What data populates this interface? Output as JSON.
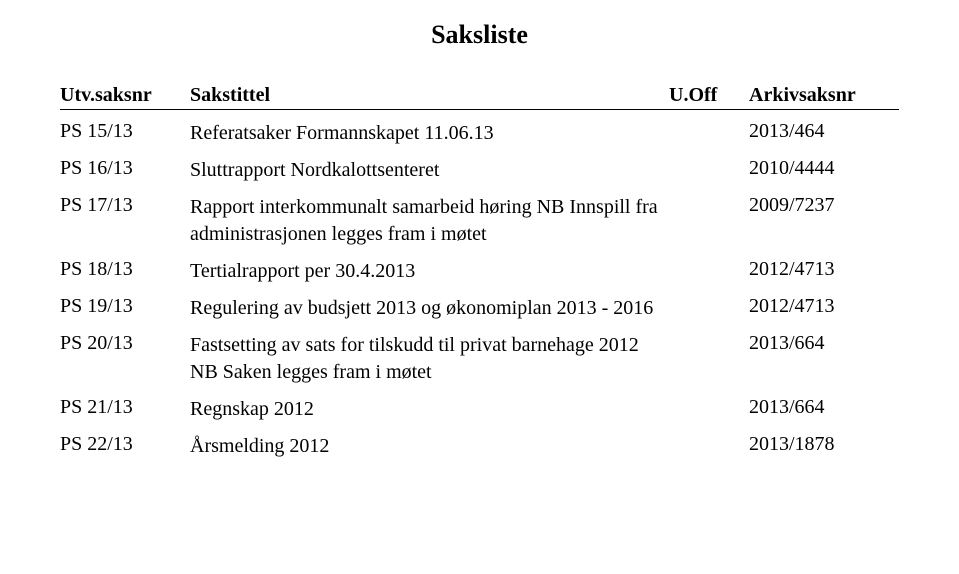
{
  "title": "Saksliste",
  "headers": {
    "nr": "Utv.saksnr",
    "tittel": "Sakstittel",
    "off": "U.Off",
    "arkiv": "Arkivsaksnr"
  },
  "rows": [
    {
      "nr": "PS 15/13",
      "tittel": "Referatsaker Formannskapet 11.06.13",
      "arkiv": "2013/464"
    },
    {
      "nr": "PS 16/13",
      "tittel": "Sluttrapport Nordkalottsenteret",
      "arkiv": "2010/4444"
    },
    {
      "nr": "PS 17/13",
      "tittel": "Rapport interkommunalt samarbeid høring\nNB Innspill fra administrasjonen legges fram i møtet",
      "arkiv": "2009/7237"
    },
    {
      "nr": "PS 18/13",
      "tittel": "Tertialrapport per 30.4.2013",
      "arkiv": "2012/4713"
    },
    {
      "nr": "PS 19/13",
      "tittel": "Regulering av budsjett 2013 og økonomiplan 2013 - 2016",
      "arkiv": "2012/4713"
    },
    {
      "nr": "PS 20/13",
      "tittel": "Fastsetting av sats for tilskudd til privat barnehage 2012\nNB Saken legges fram i møtet",
      "arkiv": "2013/664"
    },
    {
      "nr": "PS 21/13",
      "tittel": "Regnskap 2012",
      "arkiv": "2013/664"
    },
    {
      "nr": "PS 22/13",
      "tittel": "Årsmelding 2012",
      "arkiv": "2013/1878"
    }
  ],
  "layout": {
    "font_family": "Times New Roman",
    "title_fontsize": 26,
    "body_fontsize": 20,
    "col_widths": {
      "nr": 130,
      "off": 80,
      "arkiv": 150
    },
    "background_color": "#ffffff",
    "text_color": "#000000",
    "border_color": "#000000"
  }
}
